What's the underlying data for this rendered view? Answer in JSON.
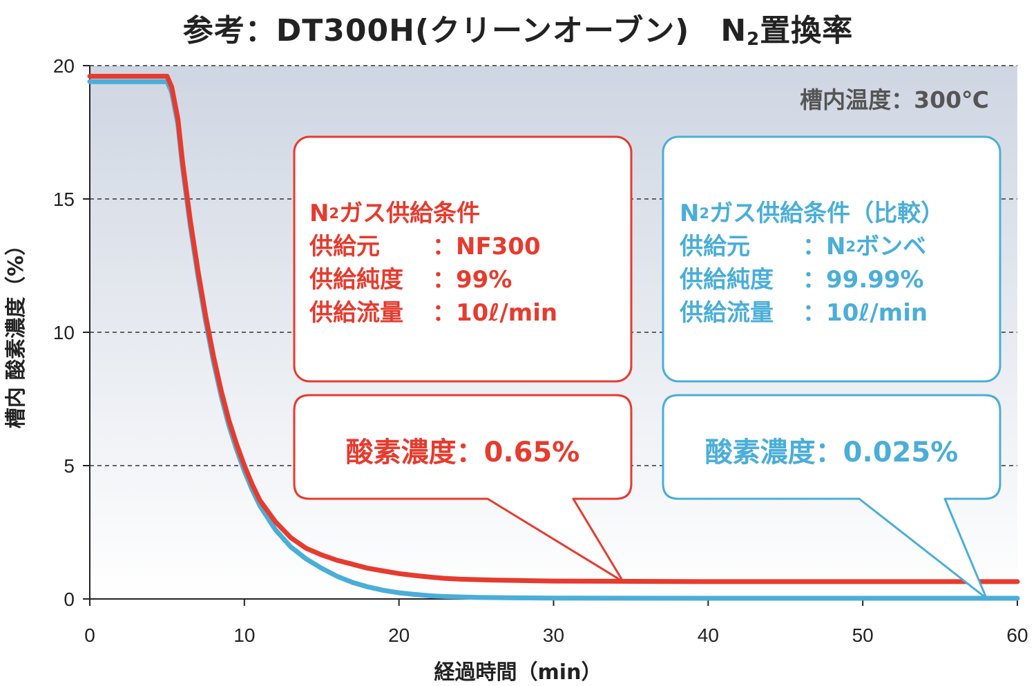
{
  "title": {
    "prefix": "参考：DT300H(クリーンオーブン)　N",
    "sub": "2",
    "suffix": "置換率"
  },
  "temp_label": "槽内温度：300℃",
  "ylabel": "槽内 酸素濃度（%）",
  "xlabel": "経過時間（min）",
  "colors": {
    "red": "#e63b2e",
    "blue": "#4aaed8",
    "plot_bg_top": "#cfd6e2",
    "plot_bg_bottom": "#ffffff"
  },
  "boxes": {
    "red": {
      "heading_n": "N",
      "heading_sub": "2",
      "heading_rest": "ガス供給条件",
      "rows": [
        {
          "key": "供給元",
          "value": "：NF300"
        },
        {
          "key": "供給純度",
          "value": "：99%"
        },
        {
          "key": "供給流量",
          "value": "：10ℓ/min"
        }
      ],
      "concentration": "酸素濃度：0.65%"
    },
    "blue": {
      "heading_n": "N",
      "heading_sub": "2",
      "heading_rest": "ガス供給条件（比較）",
      "rows": [
        {
          "key": "供給元",
          "value_n": "：N",
          "value_sub": "2",
          "value_rest": "ボンベ"
        },
        {
          "key": "供給純度",
          "value": "：99.99%"
        },
        {
          "key": "供給流量",
          "value": "：10ℓ/min"
        }
      ],
      "concentration": "酸素濃度：0.025%"
    }
  },
  "chart_data": {
    "type": "line",
    "xlim": [
      0,
      60
    ],
    "ylim": [
      0,
      20
    ],
    "x_ticks": [
      0,
      10,
      20,
      30,
      40,
      50,
      60
    ],
    "y_ticks": [
      0,
      5,
      10,
      15,
      20
    ],
    "grid": "horizontal dashed",
    "xlabel": "経過時間（min）",
    "ylabel": "槽内 酸素濃度（%）",
    "series": [
      {
        "color": "#e63b2e",
        "points": [
          [
            0,
            19.6
          ],
          [
            5,
            19.6
          ],
          [
            5.3,
            19.2
          ],
          [
            5.7,
            18.0
          ],
          [
            6,
            16.4
          ],
          [
            6.5,
            14.2
          ],
          [
            7,
            12.3
          ],
          [
            7.5,
            10.6
          ],
          [
            8,
            9.1
          ],
          [
            8.5,
            7.8
          ],
          [
            9,
            6.7
          ],
          [
            9.5,
            5.8
          ],
          [
            10,
            5.0
          ],
          [
            10.5,
            4.3
          ],
          [
            11,
            3.7
          ],
          [
            12,
            2.9
          ],
          [
            13,
            2.3
          ],
          [
            14,
            1.9
          ],
          [
            15,
            1.65
          ],
          [
            16,
            1.45
          ],
          [
            17,
            1.3
          ],
          [
            18,
            1.15
          ],
          [
            19,
            1.05
          ],
          [
            20,
            0.95
          ],
          [
            21,
            0.88
          ],
          [
            22,
            0.82
          ],
          [
            23,
            0.77
          ],
          [
            24,
            0.74
          ],
          [
            26,
            0.71
          ],
          [
            28,
            0.69
          ],
          [
            30,
            0.67
          ],
          [
            35,
            0.66
          ],
          [
            40,
            0.65
          ],
          [
            50,
            0.65
          ],
          [
            60,
            0.65
          ]
        ]
      },
      {
        "color": "#4aaed8",
        "points": [
          [
            0,
            19.4
          ],
          [
            5,
            19.4
          ],
          [
            5.3,
            19.0
          ],
          [
            5.7,
            17.8
          ],
          [
            6,
            16.2
          ],
          [
            6.5,
            14.0
          ],
          [
            7,
            12.1
          ],
          [
            7.5,
            10.4
          ],
          [
            8,
            8.9
          ],
          [
            8.5,
            7.6
          ],
          [
            9,
            6.5
          ],
          [
            9.5,
            5.6
          ],
          [
            10,
            4.8
          ],
          [
            10.5,
            4.1
          ],
          [
            11,
            3.5
          ],
          [
            12,
            2.6
          ],
          [
            13,
            1.95
          ],
          [
            14,
            1.5
          ],
          [
            15,
            1.15
          ],
          [
            16,
            0.85
          ],
          [
            17,
            0.62
          ],
          [
            18,
            0.45
          ],
          [
            19,
            0.32
          ],
          [
            20,
            0.23
          ],
          [
            21,
            0.17
          ],
          [
            22,
            0.12
          ],
          [
            23,
            0.09
          ],
          [
            25,
            0.06
          ],
          [
            28,
            0.04
          ],
          [
            30,
            0.03
          ],
          [
            40,
            0.025
          ],
          [
            60,
            0.025
          ]
        ]
      }
    ]
  }
}
